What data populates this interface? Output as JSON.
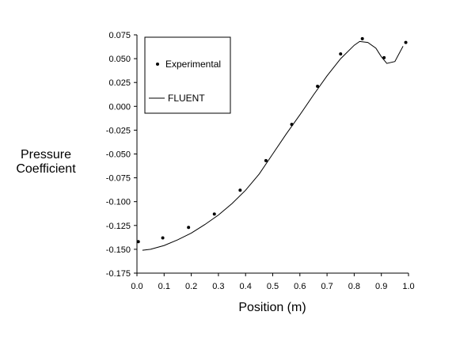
{
  "chart_data": {
    "type": "line",
    "xlabel": "Position (m)",
    "ylabel_lines": [
      "Pressure",
      "Coefficient"
    ],
    "xlim": [
      0.0,
      1.0
    ],
    "ylim": [
      -0.175,
      0.075
    ],
    "x_ticks": [
      "0.0",
      "0.1",
      "0.2",
      "0.3",
      "0.4",
      "0.5",
      "0.6",
      "0.7",
      "0.8",
      "0.9",
      "1.0"
    ],
    "y_ticks": [
      "0.075",
      "0.050",
      "0.025",
      "0.000",
      "-0.025",
      "-0.050",
      "-0.075",
      "-0.100",
      "-0.125",
      "-0.150",
      "-0.175"
    ],
    "legend_position": "top-left",
    "series": [
      {
        "name": "Experimental",
        "style": "points",
        "color": "#000000",
        "x": [
          0.005,
          0.095,
          0.19,
          0.285,
          0.38,
          0.475,
          0.57,
          0.665,
          0.75,
          0.83,
          0.91,
          0.99
        ],
        "y": [
          -0.142,
          -0.138,
          -0.127,
          -0.113,
          -0.088,
          -0.057,
          -0.019,
          0.021,
          0.055,
          0.071,
          0.051,
          0.067
        ]
      },
      {
        "name": "FLUENT",
        "style": "line",
        "color": "#000000",
        "x": [
          0.02,
          0.05,
          0.1,
          0.15,
          0.2,
          0.25,
          0.3,
          0.35,
          0.4,
          0.45,
          0.5,
          0.55,
          0.6,
          0.65,
          0.7,
          0.75,
          0.8,
          0.82,
          0.85,
          0.88,
          0.9,
          0.92,
          0.95,
          0.98
        ],
        "y": [
          -0.151,
          -0.15,
          -0.146,
          -0.14,
          -0.133,
          -0.124,
          -0.114,
          -0.102,
          -0.088,
          -0.071,
          -0.05,
          -0.029,
          -0.009,
          0.012,
          0.032,
          0.05,
          0.064,
          0.068,
          0.067,
          0.061,
          0.052,
          0.045,
          0.047,
          0.063
        ]
      }
    ]
  }
}
